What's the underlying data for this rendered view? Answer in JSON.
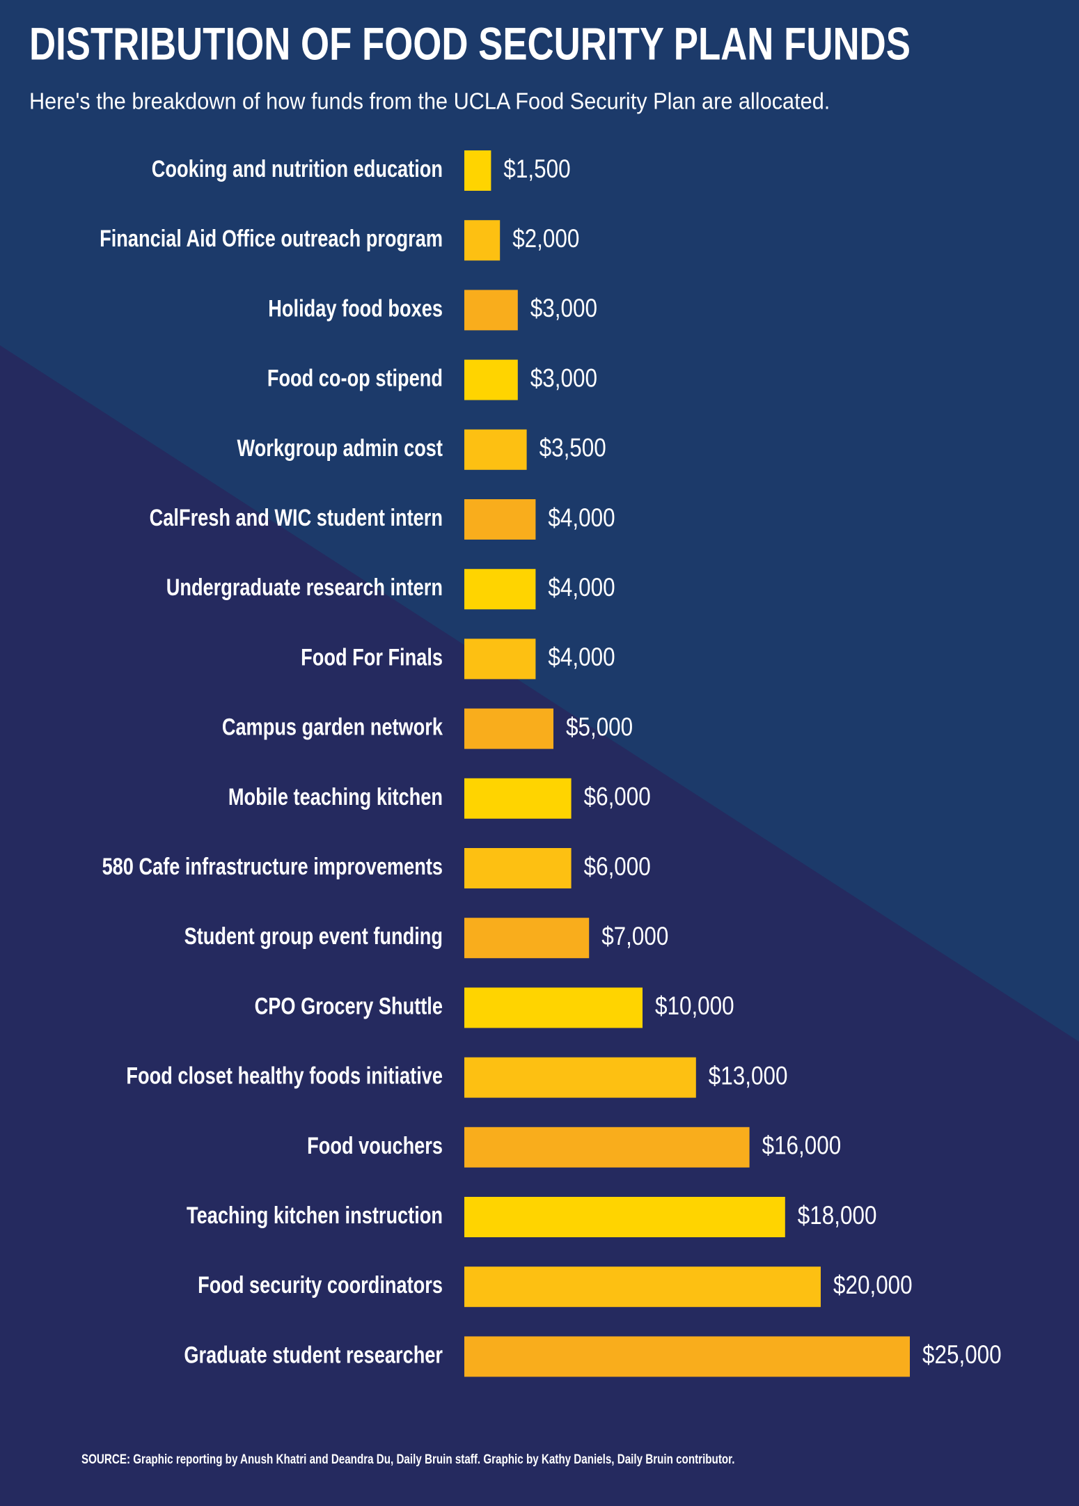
{
  "chart_data": {
    "type": "hbar",
    "title": "DISTRIBUTION OF FOOD SECURITY PLAN FUNDS",
    "subtitle": "Here's the breakdown of how funds from the UCLA Food Security Plan are allocated.",
    "categories": [
      "Cooking and nutrition education",
      "Financial Aid Office outreach program",
      "Holiday food boxes",
      "Food co-op stipend",
      "Workgroup admin cost",
      "CalFresh and WIC student intern",
      "Undergraduate research intern",
      "Food For Finals",
      "Campus garden network",
      "Mobile teaching kitchen",
      "580 Cafe infrastructure improvements",
      "Student group event funding",
      "CPO Grocery Shuttle",
      "Food closet healthy foods initiative",
      "Food vouchers",
      "Teaching kitchen instruction",
      "Food security coordinators",
      "Graduate student researcher"
    ],
    "values": [
      1500,
      2000,
      3000,
      3000,
      3500,
      4000,
      4000,
      4000,
      5000,
      6000,
      6000,
      7000,
      10000,
      13000,
      16000,
      18000,
      20000,
      25000
    ],
    "value_labels": [
      "$1,500",
      "$2,000",
      "$3,000",
      "$3,000",
      "$3,500",
      "$4,000",
      "$4,000",
      "$4,000",
      "$5,000",
      "$6,000",
      "$6,000",
      "$7,000",
      "$10,000",
      "$13,000",
      "$16,000",
      "$18,000",
      "$20,000",
      "$25,000"
    ],
    "colors": [
      "#ffd400",
      "#fdc012",
      "#f9ad1c",
      "#ffd400",
      "#fdc012",
      "#f9ad1c",
      "#ffd400",
      "#fdc012",
      "#f9ad1c",
      "#ffd400",
      "#fdc012",
      "#f9ad1c",
      "#ffd400",
      "#fdc012",
      "#f9ad1c",
      "#ffd400",
      "#fdc012",
      "#f9ad1c"
    ],
    "source": "SOURCE: Graphic reporting by Anush Khatri and Deandra Du, Daily Bruin staff. Graphic by Kathy Daniels, Daily Bruin contributor."
  }
}
